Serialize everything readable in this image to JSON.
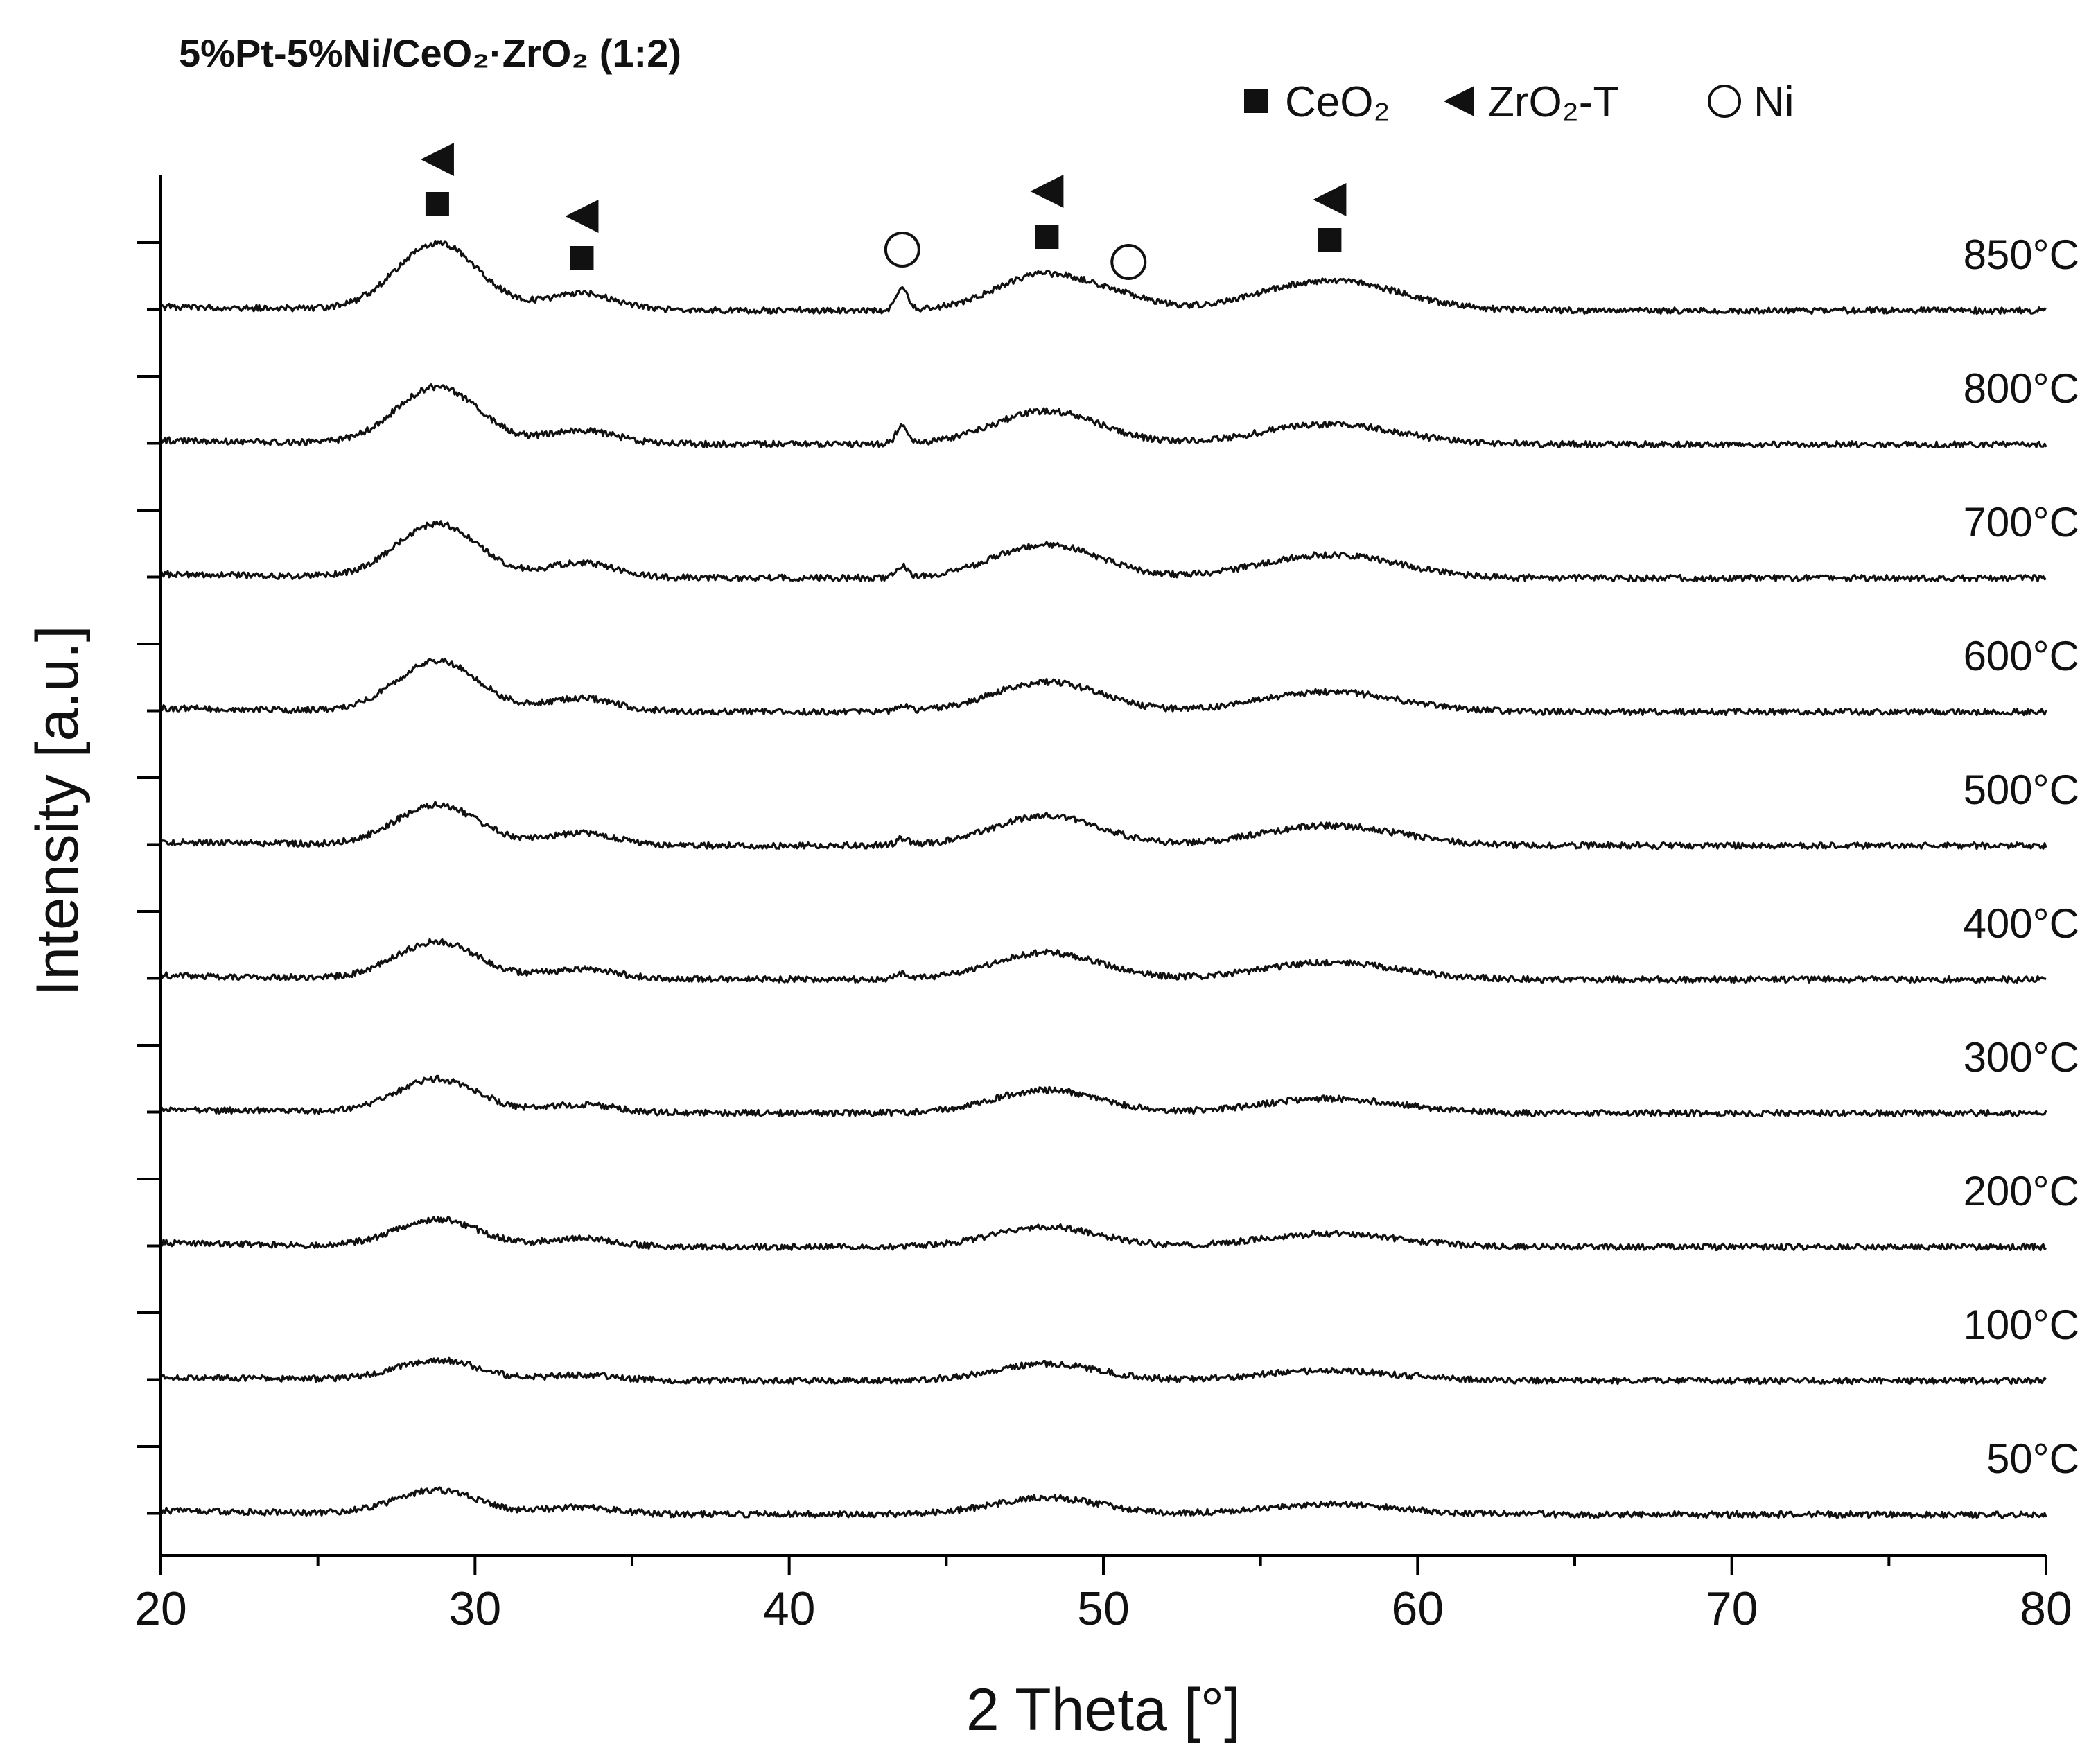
{
  "chart_data": {
    "type": "line",
    "title": "5%Pt-5%Ni/CeO₂·ZrO₂ (1:2)",
    "xlabel": "2 Theta [°]",
    "ylabel": "Intensity [a.u.]",
    "xlim": [
      20,
      80
    ],
    "xticks": [
      20,
      30,
      40,
      50,
      60,
      70,
      80
    ],
    "yticks_labeled": false,
    "grid": false,
    "legend_position": "top-right",
    "legend": [
      {
        "symbol": "filled-square",
        "label": "CeO₂"
      },
      {
        "symbol": "filled-triangle-left",
        "label": "ZrO₂-T"
      },
      {
        "symbol": "open-circle",
        "label": "Ni"
      }
    ],
    "peaks": [
      28.8,
      33.4,
      43.6,
      48.2,
      50.8,
      57.2
    ],
    "series": [
      {
        "name": "850°C",
        "peaks": [
          [
            28.8,
            1.0,
            1.3
          ],
          [
            33.4,
            0.25,
            1.1
          ],
          [
            43.6,
            0.35,
            0.18
          ],
          [
            48.2,
            0.55,
            1.6
          ],
          [
            50.8,
            0.1,
            1.0
          ],
          [
            57.2,
            0.45,
            2.2
          ]
        ]
      },
      {
        "name": "800°C",
        "peaks": [
          [
            28.8,
            0.85,
            1.3
          ],
          [
            33.4,
            0.2,
            1.1
          ],
          [
            43.6,
            0.28,
            0.18
          ],
          [
            48.2,
            0.5,
            1.7
          ],
          [
            57.2,
            0.3,
            2.2
          ]
        ]
      },
      {
        "name": "700°C",
        "peaks": [
          [
            28.8,
            0.8,
            1.3
          ],
          [
            33.4,
            0.22,
            1.1
          ],
          [
            43.6,
            0.18,
            0.18
          ],
          [
            48.2,
            0.5,
            1.7
          ],
          [
            57.2,
            0.35,
            2.2
          ]
        ]
      },
      {
        "name": "600°C",
        "peaks": [
          [
            28.8,
            0.75,
            1.3
          ],
          [
            33.4,
            0.2,
            1.1
          ],
          [
            43.6,
            0.1,
            0.18
          ],
          [
            48.2,
            0.45,
            1.7
          ],
          [
            57.2,
            0.3,
            2.2
          ]
        ]
      },
      {
        "name": "500°C",
        "peaks": [
          [
            28.8,
            0.6,
            1.3
          ],
          [
            33.4,
            0.18,
            1.1
          ],
          [
            43.6,
            0.1,
            0.18
          ],
          [
            48.2,
            0.45,
            1.7
          ],
          [
            57.2,
            0.3,
            2.2
          ]
        ]
      },
      {
        "name": "400°C",
        "peaks": [
          [
            28.8,
            0.55,
            1.3
          ],
          [
            33.4,
            0.15,
            1.1
          ],
          [
            43.6,
            0.08,
            0.18
          ],
          [
            48.2,
            0.4,
            1.7
          ],
          [
            57.2,
            0.25,
            2.2
          ]
        ]
      },
      {
        "name": "300°C",
        "peaks": [
          [
            28.8,
            0.5,
            1.3
          ],
          [
            33.4,
            0.12,
            1.1
          ],
          [
            48.2,
            0.35,
            1.7
          ],
          [
            57.2,
            0.22,
            2.2
          ]
        ]
      },
      {
        "name": "200°C",
        "peaks": [
          [
            28.8,
            0.4,
            1.3
          ],
          [
            33.4,
            0.12,
            1.1
          ],
          [
            48.2,
            0.3,
            1.7
          ],
          [
            57.2,
            0.2,
            2.2
          ]
        ]
      },
      {
        "name": "100°C",
        "peaks": [
          [
            28.8,
            0.3,
            1.3
          ],
          [
            33.4,
            0.08,
            1.1
          ],
          [
            48.2,
            0.25,
            1.7
          ],
          [
            57.2,
            0.15,
            2.2
          ]
        ]
      },
      {
        "name": "50°C",
        "peaks": [
          [
            28.8,
            0.35,
            1.3
          ],
          [
            33.4,
            0.1,
            1.1
          ],
          [
            48.2,
            0.25,
            1.7
          ],
          [
            57.2,
            0.15,
            2.2
          ]
        ]
      }
    ]
  }
}
